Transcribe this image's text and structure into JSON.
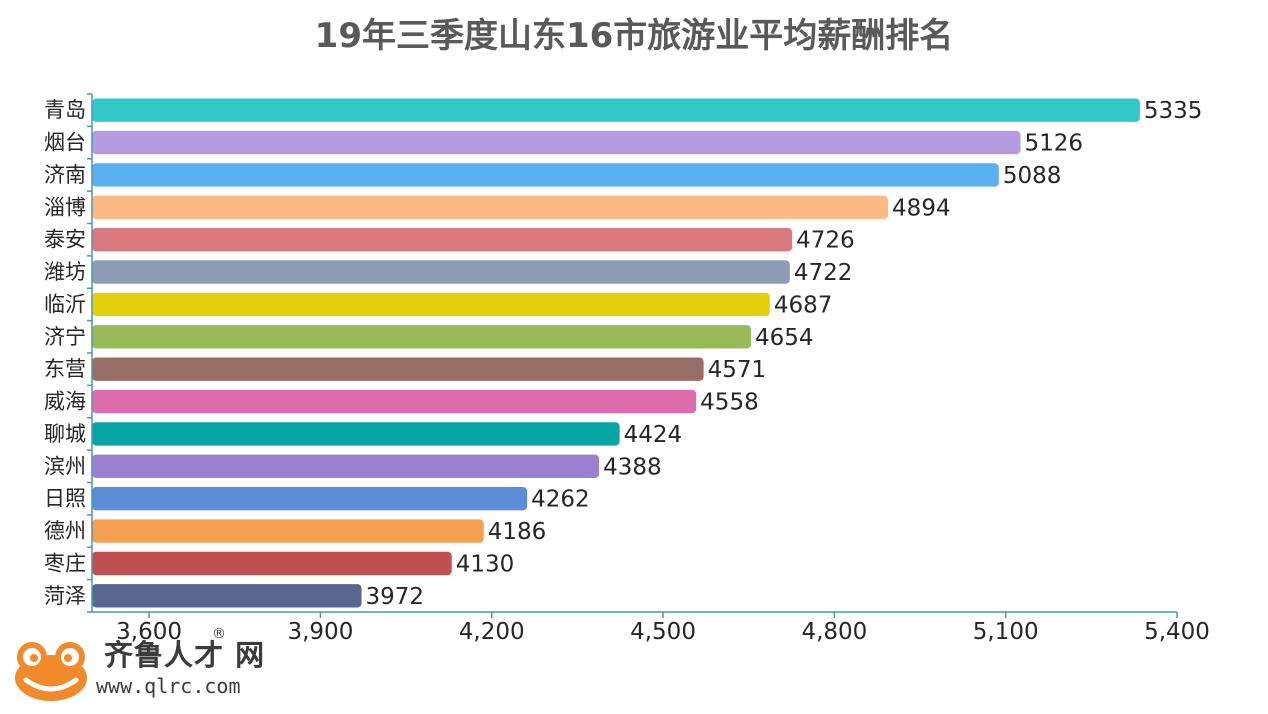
{
  "chart_data": {
    "type": "bar",
    "orientation": "horizontal",
    "title": "19年三季度山东16市旅游业平均薪酬排名",
    "categories": [
      "青岛",
      "烟台",
      "济南",
      "淄博",
      "泰安",
      "潍坊",
      "临沂",
      "济宁",
      "东营",
      "威海",
      "聊城",
      "滨州",
      "日照",
      "德州",
      "枣庄",
      "菏泽"
    ],
    "values": [
      5335,
      5126,
      5088,
      4894,
      4726,
      4722,
      4687,
      4654,
      4571,
      4558,
      4424,
      4388,
      4262,
      4186,
      4130,
      3972
    ],
    "colors": [
      "#33c8c8",
      "#b39ddf",
      "#5ab0ee",
      "#fdb983",
      "#d9787e",
      "#8e9bb5",
      "#e3d00a",
      "#99b957",
      "#966d67",
      "#de6bad",
      "#0aa5a5",
      "#9c81d2",
      "#5b8dd6",
      "#f4a050",
      "#c25050",
      "#59678f"
    ],
    "xlim": [
      3500,
      5400
    ],
    "xticks": [
      "3,600",
      "3,900",
      "4,200",
      "4,500",
      "4,800",
      "5,100",
      "5,400"
    ],
    "xtick_values": [
      3600,
      3900,
      4200,
      4500,
      4800,
      5100,
      5400
    ],
    "axis_color": "#4a98a8",
    "grid": false,
    "legend": "none"
  },
  "logo": {
    "name": "齐鲁人才",
    "suffix": "网",
    "registered": "®",
    "url": "www.qlrc.com",
    "icon": "frog-icon"
  }
}
